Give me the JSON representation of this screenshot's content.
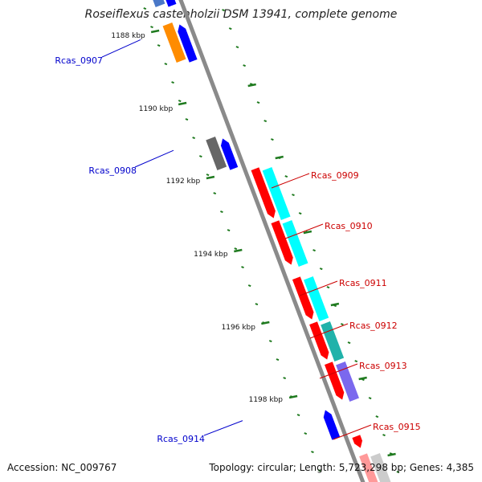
{
  "title": "Roseiflexus castenholzii DSM 13941, complete genome",
  "accession": "Accession: NC_009767",
  "stats": "Topology: circular; Length: 5,723,298 bp; Genes: 4,385",
  "colors": {
    "backbone": "#8a8a8a",
    "tick": "#1f7a1f",
    "forward_label": "#0000cc",
    "reverse_label": "#cc0000",
    "forward_gene": "#0000ff",
    "reverse_gene": "#ff0000",
    "cog_orange": "#ff8c00",
    "cog_cyan": "#00ffff",
    "cog_teal": "#20b2aa",
    "cog_purple": "#7b68ee",
    "cog_gray": "#666666"
  },
  "position_labels": [
    "1188 kbp",
    "1190 kbp",
    "1192 kbp",
    "1194 kbp",
    "1196 kbp",
    "1198 kbp"
  ],
  "genes": [
    {
      "name": "Rcas_0907",
      "strand": "forward",
      "cog": "orange"
    },
    {
      "name": "Rcas_0908",
      "strand": "forward",
      "cog": "gray"
    },
    {
      "name": "Rcas_0909",
      "strand": "reverse",
      "cog": "cyan"
    },
    {
      "name": "Rcas_0910",
      "strand": "reverse",
      "cog": "cyan"
    },
    {
      "name": "Rcas_0911",
      "strand": "reverse",
      "cog": "cyan"
    },
    {
      "name": "Rcas_0912",
      "strand": "reverse",
      "cog": "teal"
    },
    {
      "name": "Rcas_0913",
      "strand": "reverse",
      "cog": "purple"
    },
    {
      "name": "Rcas_0914",
      "strand": "forward",
      "cog": "none"
    },
    {
      "name": "Rcas_0915",
      "strand": "reverse",
      "cog": "none"
    }
  ]
}
